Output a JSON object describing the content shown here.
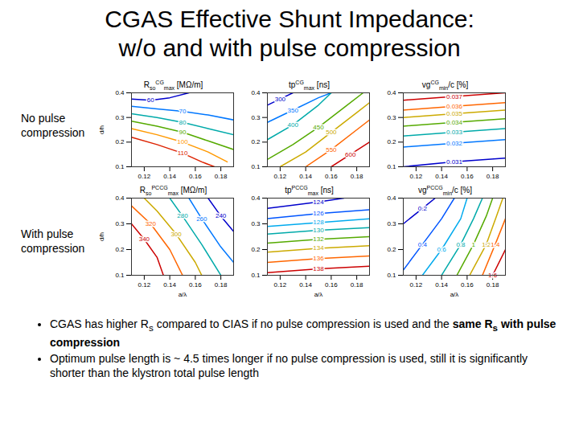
{
  "title": [
    "CGAS Effective Shunt Impedance:",
    "w/o and with pulse compression"
  ],
  "row_labels": [
    "No pulse compression",
    "With pulse compression"
  ],
  "bullets": [
    [
      {
        "text": "CGAS has higher R"
      },
      {
        "text": "s",
        "style": "sub"
      },
      {
        "text": " compared to CIAS if no pulse compression is used and the "
      },
      {
        "text": "same R",
        "style": "bold"
      },
      {
        "text": "s",
        "style": "bold-sub"
      },
      {
        "text": " with pulse compression",
        "style": "bold"
      }
    ],
    [
      {
        "text": "Optimum pulse length is ~ 4.5 times longer if no pulse compression is used, still it is significantly shorter than the klystron total pulse length"
      }
    ]
  ],
  "chart_data": [
    {
      "type": "contour",
      "title": [
        {
          "text": "R"
        },
        {
          "text": "so",
          "style": "sub"
        },
        {
          "text": "CG",
          "style": "sup"
        },
        {
          "text": "max",
          "style": "sub"
        },
        {
          "text": " [MΩ/m]"
        }
      ],
      "ylabel": "d/h",
      "xlim": [
        0.11,
        0.19
      ],
      "ylim": [
        0.1,
        0.4
      ],
      "xticks": [
        0.12,
        0.14,
        0.16,
        0.18
      ],
      "yticks": [
        0.1,
        0.2,
        0.3,
        0.4
      ],
      "series": [
        {
          "name": "60",
          "color": "#0000cc",
          "x": [
            0.11,
            0.125,
            0.14,
            0.155
          ],
          "y": [
            0.375,
            0.37,
            0.38,
            0.4
          ]
        },
        {
          "name": "70",
          "color": "#0077ff",
          "x": [
            0.11,
            0.13,
            0.15,
            0.17,
            0.19
          ],
          "y": [
            0.345,
            0.335,
            0.325,
            0.31,
            0.29
          ]
        },
        {
          "name": "80",
          "color": "#00aaaa",
          "x": [
            0.11,
            0.13,
            0.15,
            0.17,
            0.19
          ],
          "y": [
            0.315,
            0.3,
            0.28,
            0.255,
            0.23
          ]
        },
        {
          "name": "90",
          "color": "#55aa00",
          "x": [
            0.11,
            0.13,
            0.15,
            0.17,
            0.19
          ],
          "y": [
            0.285,
            0.265,
            0.24,
            0.205,
            0.17
          ]
        },
        {
          "name": "100",
          "color": "#ff9900",
          "x": [
            0.11,
            0.13,
            0.15,
            0.17,
            0.185
          ],
          "y": [
            0.255,
            0.23,
            0.2,
            0.16,
            0.12
          ]
        },
        {
          "name": "110",
          "color": "#dd2200",
          "x": [
            0.11,
            0.13,
            0.15,
            0.165,
            0.175
          ],
          "y": [
            0.22,
            0.19,
            0.155,
            0.12,
            0.1
          ]
        }
      ]
    },
    {
      "type": "contour",
      "title": [
        {
          "text": "tp"
        },
        {
          "text": "CG",
          "style": "sup"
        },
        {
          "text": "max",
          "style": "sub"
        },
        {
          "text": " [ns]"
        }
      ],
      "xlim": [
        0.11,
        0.19
      ],
      "ylim": [
        0.1,
        0.4
      ],
      "xticks": [
        0.12,
        0.14,
        0.16,
        0.18
      ],
      "yticks": [
        0.1,
        0.2,
        0.3,
        0.4
      ],
      "series": [
        {
          "name": "300",
          "color": "#0000cc",
          "x": [
            0.11,
            0.12,
            0.13
          ],
          "y": [
            0.35,
            0.375,
            0.4
          ]
        },
        {
          "name": "350",
          "color": "#0077ff",
          "x": [
            0.11,
            0.13,
            0.15,
            0.16
          ],
          "y": [
            0.28,
            0.33,
            0.38,
            0.4
          ]
        },
        {
          "name": "400",
          "color": "#00aaaa",
          "x": [
            0.11,
            0.13,
            0.15,
            0.16
          ],
          "y": [
            0.21,
            0.27,
            0.35,
            0.4
          ]
        },
        {
          "name": "450",
          "color": "#55aa00",
          "x": [
            0.11,
            0.13,
            0.15,
            0.17,
            0.185
          ],
          "y": [
            0.13,
            0.19,
            0.26,
            0.34,
            0.4
          ]
        },
        {
          "name": "500",
          "color": "#ccaa00",
          "x": [
            0.12,
            0.14,
            0.16,
            0.18,
            0.19
          ],
          "y": [
            0.1,
            0.16,
            0.24,
            0.32,
            0.36
          ]
        },
        {
          "name": "550",
          "color": "#ff6600",
          "x": [
            0.14,
            0.16,
            0.18,
            0.19
          ],
          "y": [
            0.1,
            0.17,
            0.25,
            0.29
          ]
        },
        {
          "name": "600",
          "color": "#cc0000",
          "x": [
            0.16,
            0.175,
            0.19
          ],
          "y": [
            0.1,
            0.15,
            0.2
          ]
        }
      ]
    },
    {
      "type": "contour",
      "title": [
        {
          "text": "vg"
        },
        {
          "text": "CG",
          "style": "sup"
        },
        {
          "text": "min",
          "style": "sub"
        },
        {
          "text": "/c [%]"
        }
      ],
      "xlim": [
        0.11,
        0.19
      ],
      "ylim": [
        0.1,
        0.4
      ],
      "xticks": [
        0.12,
        0.14,
        0.16,
        0.18
      ],
      "yticks": [
        0.1,
        0.2,
        0.3,
        0.4
      ],
      "series": [
        {
          "name": "0.031",
          "color": "#0000cc",
          "x": [
            0.11,
            0.15,
            0.19
          ],
          "y": [
            0.1,
            0.12,
            0.135
          ]
        },
        {
          "name": "0.032",
          "color": "#0077ff",
          "x": [
            0.11,
            0.15,
            0.19
          ],
          "y": [
            0.18,
            0.195,
            0.21
          ]
        },
        {
          "name": "0.033",
          "color": "#00aaaa",
          "x": [
            0.11,
            0.15,
            0.19
          ],
          "y": [
            0.225,
            0.24,
            0.255
          ]
        },
        {
          "name": "0.034",
          "color": "#55aa00",
          "x": [
            0.11,
            0.15,
            0.19
          ],
          "y": [
            0.265,
            0.28,
            0.295
          ]
        },
        {
          "name": "0.035",
          "color": "#ccaa00",
          "x": [
            0.11,
            0.15,
            0.19
          ],
          "y": [
            0.3,
            0.315,
            0.33
          ]
        },
        {
          "name": "0.036",
          "color": "#ff6600",
          "x": [
            0.11,
            0.15,
            0.19
          ],
          "y": [
            0.33,
            0.345,
            0.36
          ]
        },
        {
          "name": "0.037",
          "color": "#cc0000",
          "x": [
            0.11,
            0.15,
            0.19
          ],
          "y": [
            0.37,
            0.385,
            0.4
          ]
        }
      ]
    },
    {
      "type": "contour",
      "title": [
        {
          "text": "R"
        },
        {
          "text": "so",
          "style": "sub"
        },
        {
          "text": "PCCG",
          "style": "sup"
        },
        {
          "text": "max",
          "style": "sub"
        },
        {
          "text": " [MΩ/m]"
        }
      ],
      "xlabel": "a/λ",
      "ylabel": "d/h",
      "xlim": [
        0.11,
        0.19
      ],
      "ylim": [
        0.1,
        0.4
      ],
      "xticks": [
        0.12,
        0.14,
        0.16,
        0.18
      ],
      "yticks": [
        0.1,
        0.2,
        0.3,
        0.4
      ],
      "series": [
        {
          "name": "240",
          "color": "#0000cc",
          "x": [
            0.17,
            0.18,
            0.19
          ],
          "y": [
            0.4,
            0.33,
            0.27
          ]
        },
        {
          "name": "260",
          "color": "#0077ff",
          "x": [
            0.155,
            0.165,
            0.18,
            0.19
          ],
          "y": [
            0.4,
            0.32,
            0.21,
            0.15
          ]
        },
        {
          "name": "280",
          "color": "#00aaaa",
          "x": [
            0.14,
            0.15,
            0.165,
            0.18
          ],
          "y": [
            0.4,
            0.33,
            0.22,
            0.1
          ]
        },
        {
          "name": "300",
          "color": "#ccaa00",
          "x": [
            0.12,
            0.13,
            0.145,
            0.16,
            0.165
          ],
          "y": [
            0.4,
            0.35,
            0.26,
            0.15,
            0.1
          ]
        },
        {
          "name": "320",
          "color": "#ff6600",
          "x": [
            0.11,
            0.125,
            0.14,
            0.15
          ],
          "y": [
            0.37,
            0.3,
            0.2,
            0.1
          ]
        },
        {
          "name": "340",
          "color": "#cc0000",
          "x": [
            0.11,
            0.12,
            0.13,
            0.135
          ],
          "y": [
            0.3,
            0.24,
            0.17,
            0.1
          ]
        }
      ]
    },
    {
      "type": "contour",
      "title": [
        {
          "text": "tp"
        },
        {
          "text": "PCCG",
          "style": "sup"
        },
        {
          "text": "max",
          "style": "sub"
        },
        {
          "text": " [ns]"
        }
      ],
      "xlabel": "a/λ",
      "xlim": [
        0.11,
        0.19
      ],
      "ylim": [
        0.1,
        0.4
      ],
      "xticks": [
        0.12,
        0.14,
        0.16,
        0.18
      ],
      "yticks": [
        0.1,
        0.2,
        0.3,
        0.4
      ],
      "series": [
        {
          "name": "124",
          "color": "#0000cc",
          "x": [
            0.11,
            0.15,
            0.17
          ],
          "y": [
            0.36,
            0.385,
            0.4
          ]
        },
        {
          "name": "126",
          "color": "#0055ff",
          "x": [
            0.11,
            0.15,
            0.19
          ],
          "y": [
            0.32,
            0.34,
            0.355
          ]
        },
        {
          "name": "128",
          "color": "#00aaee",
          "x": [
            0.11,
            0.15,
            0.19
          ],
          "y": [
            0.29,
            0.305,
            0.32
          ]
        },
        {
          "name": "130",
          "color": "#00aaaa",
          "x": [
            0.11,
            0.15,
            0.19
          ],
          "y": [
            0.26,
            0.275,
            0.285
          ]
        },
        {
          "name": "132",
          "color": "#55aa00",
          "x": [
            0.11,
            0.15,
            0.19
          ],
          "y": [
            0.225,
            0.24,
            0.25
          ]
        },
        {
          "name": "134",
          "color": "#ccaa00",
          "x": [
            0.11,
            0.15,
            0.19
          ],
          "y": [
            0.19,
            0.205,
            0.215
          ]
        },
        {
          "name": "136",
          "color": "#ff6600",
          "x": [
            0.11,
            0.15,
            0.19
          ],
          "y": [
            0.15,
            0.165,
            0.175
          ]
        },
        {
          "name": "138",
          "color": "#cc0000",
          "x": [
            0.11,
            0.15,
            0.19
          ],
          "y": [
            0.11,
            0.125,
            0.135
          ]
        }
      ]
    },
    {
      "type": "contour",
      "title": [
        {
          "text": "vg"
        },
        {
          "text": "PCCG",
          "style": "sup"
        },
        {
          "text": "min",
          "style": "sub"
        },
        {
          "text": "/c [%]"
        }
      ],
      "xlabel": "a/λ",
      "xlim": [
        0.11,
        0.19
      ],
      "ylim": [
        0.1,
        0.4
      ],
      "xticks": [
        0.12,
        0.14,
        0.16,
        0.18
      ],
      "yticks": [
        0.1,
        0.2,
        0.3,
        0.4
      ],
      "series": [
        {
          "name": "0.2",
          "color": "#0000cc",
          "x": [
            0.11,
            0.125,
            0.135
          ],
          "y": [
            0.3,
            0.36,
            0.4
          ]
        },
        {
          "name": "0.4",
          "color": "#0055ff",
          "x": [
            0.11,
            0.125,
            0.14,
            0.15
          ],
          "y": [
            0.12,
            0.22,
            0.32,
            0.4
          ]
        },
        {
          "name": "0.6",
          "color": "#00aaee",
          "x": [
            0.125,
            0.14,
            0.155,
            0.16
          ],
          "y": [
            0.1,
            0.2,
            0.32,
            0.4
          ]
        },
        {
          "name": "0.8",
          "color": "#00aaaa",
          "x": [
            0.14,
            0.155,
            0.165,
            0.172
          ],
          "y": [
            0.1,
            0.22,
            0.32,
            0.4
          ]
        },
        {
          "name": "1",
          "color": "#55aa00",
          "x": [
            0.152,
            0.165,
            0.175,
            0.18
          ],
          "y": [
            0.1,
            0.22,
            0.33,
            0.4
          ]
        },
        {
          "name": "1.2",
          "color": "#ccaa00",
          "x": [
            0.162,
            0.175,
            0.183,
            0.188
          ],
          "y": [
            0.1,
            0.22,
            0.33,
            0.4
          ]
        },
        {
          "name": "1.4",
          "color": "#ff6600",
          "x": [
            0.172,
            0.182,
            0.19
          ],
          "y": [
            0.1,
            0.22,
            0.32
          ]
        },
        {
          "name": "1.6",
          "color": "#cc0000",
          "x": [
            0.18,
            0.19
          ],
          "y": [
            0.1,
            0.2
          ]
        }
      ]
    }
  ]
}
